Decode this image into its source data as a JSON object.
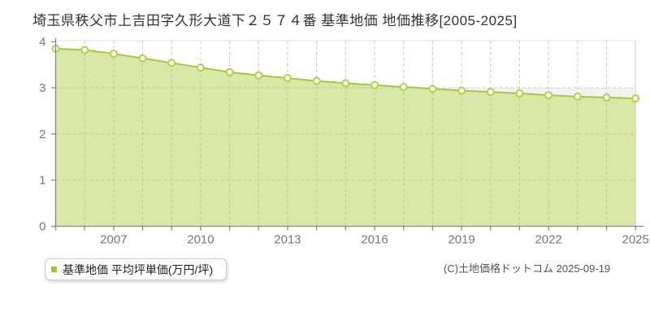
{
  "page": {
    "title": "埼玉県秩父市上吉田字久形大道下２５７４番 基準地価 地価推移[2005-2025]",
    "copyright": "(C)土地価格ドットコム 2025-09-19"
  },
  "legend": {
    "label": "基準地価 平均坪単価(万円/坪)"
  },
  "chart_data": {
    "type": "area",
    "title": "埼玉県秩父市上吉田字久形大道下２５７４番 基準地価 地価推移[2005-2025]",
    "x": [
      2005,
      2006,
      2007,
      2008,
      2009,
      2010,
      2011,
      2012,
      2013,
      2014,
      2015,
      2016,
      2017,
      2018,
      2019,
      2020,
      2021,
      2022,
      2023,
      2024,
      2025
    ],
    "series": [
      {
        "name": "基準地価 平均坪単価(万円/坪)",
        "values": [
          3.85,
          3.82,
          3.74,
          3.64,
          3.54,
          3.44,
          3.34,
          3.27,
          3.21,
          3.15,
          3.1,
          3.06,
          3.02,
          2.98,
          2.94,
          2.91,
          2.88,
          2.84,
          2.81,
          2.79,
          2.77
        ]
      }
    ],
    "xlabel": "",
    "ylabel": "",
    "ylim": [
      0,
      4
    ],
    "y_ticks": [
      0,
      1,
      2,
      3,
      4
    ],
    "x_tick_years": [
      2007,
      2010,
      2013,
      2016,
      2019,
      2022,
      2025
    ],
    "grid": true,
    "legend_position": "bottom-left",
    "colors": {
      "line": "#a6c83b",
      "fill": "rgba(170,203,60,0.45)",
      "marker_fill": "#fdfef5",
      "marker_stroke": "#b0d243",
      "grid": "#cccccc",
      "axis": "#888888",
      "border_top": "#e2e2e2",
      "border_right": "#d8d8d8",
      "band": "rgba(0,0,0,0.05)",
      "tick_text": "#77777c",
      "legend_marker": "#9fc520"
    }
  }
}
